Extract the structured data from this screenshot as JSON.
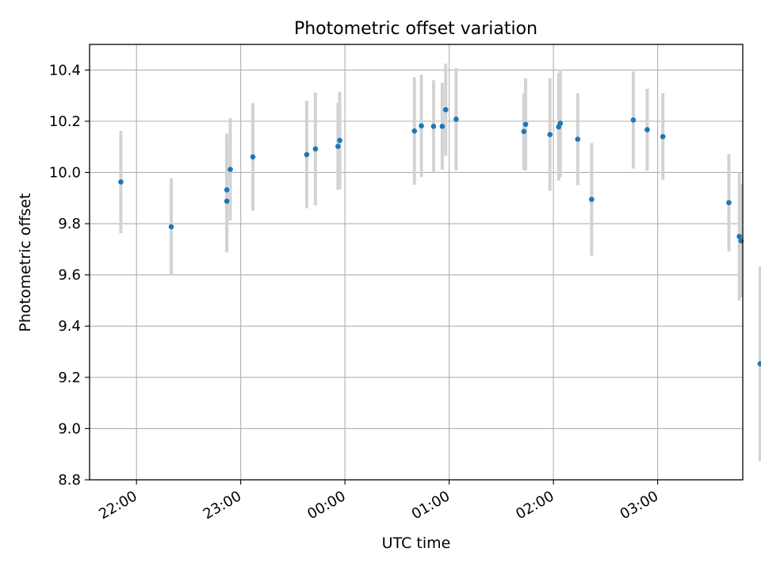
{
  "chart_data": {
    "type": "scatter",
    "title": "Photometric offset variation",
    "xlabel": "UTC time",
    "ylabel": "Photometric offset",
    "x_axis_kind": "time",
    "x_tick_values": [
      "22:00",
      "23:00",
      "00:00",
      "01:00",
      "02:00",
      "03:00"
    ],
    "xlim": [
      "21:33",
      "03:49"
    ],
    "ylim": [
      8.8,
      10.5
    ],
    "y_ticks": [
      8.8,
      9.0,
      9.2,
      9.4,
      9.6,
      9.8,
      10.0,
      10.2,
      10.4
    ],
    "grid": true,
    "marker_color": "#1f77b4",
    "errorbar_color": "#d3d3d3",
    "series": [
      {
        "points": [
          {
            "x": "21:51",
            "y": 9.963,
            "err": 0.2
          },
          {
            "x": "22:20",
            "y": 9.788,
            "err": 0.19
          },
          {
            "x": "22:52",
            "y": 9.888,
            "err": 0.2
          },
          {
            "x": "22:52",
            "y": 9.932,
            "err": 0.22
          },
          {
            "x": "22:54",
            "y": 10.012,
            "err": 0.2
          },
          {
            "x": "23:07",
            "y": 10.061,
            "err": 0.21
          },
          {
            "x": "23:38",
            "y": 10.07,
            "err": 0.21
          },
          {
            "x": "23:43",
            "y": 10.092,
            "err": 0.22
          },
          {
            "x": "23:56",
            "y": 10.102,
            "err": 0.17
          },
          {
            "x": "23:57",
            "y": 10.125,
            "err": 0.19
          },
          {
            "x": "00:40",
            "y": 10.162,
            "err": 0.21
          },
          {
            "x": "00:44",
            "y": 10.182,
            "err": 0.2
          },
          {
            "x": "00:51",
            "y": 10.18,
            "err": 0.18
          },
          {
            "x": "00:56",
            "y": 10.18,
            "err": 0.17
          },
          {
            "x": "00:58",
            "y": 10.245,
            "err": 0.18
          },
          {
            "x": "01:04",
            "y": 10.208,
            "err": 0.2
          },
          {
            "x": "01:43",
            "y": 10.16,
            "err": 0.15
          },
          {
            "x": "01:44",
            "y": 10.188,
            "err": 0.18
          },
          {
            "x": "01:58",
            "y": 10.148,
            "err": 0.22
          },
          {
            "x": "02:03",
            "y": 10.178,
            "err": 0.21
          },
          {
            "x": "02:04",
            "y": 10.192,
            "err": 0.21
          },
          {
            "x": "02:14",
            "y": 10.13,
            "err": 0.18
          },
          {
            "x": "02:22",
            "y": 9.895,
            "err": 0.22
          },
          {
            "x": "02:46",
            "y": 10.205,
            "err": 0.19
          },
          {
            "x": "02:54",
            "y": 10.167,
            "err": 0.16
          },
          {
            "x": "03:03",
            "y": 10.14,
            "err": 0.17
          },
          {
            "x": "03:41",
            "y": 9.882,
            "err": 0.19
          },
          {
            "x": "03:47",
            "y": 9.75,
            "err": 0.25
          },
          {
            "x": "03:48",
            "y": 9.733,
            "err": 0.22
          },
          {
            "x": "03:59",
            "y": 9.253,
            "err": 0.38
          }
        ]
      }
    ]
  }
}
